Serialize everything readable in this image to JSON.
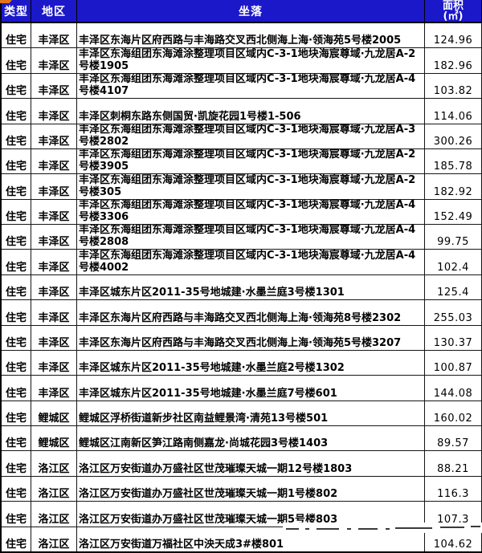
{
  "table": {
    "headers": {
      "type": "类型",
      "district": "地区",
      "location": "坐落",
      "area_line1": "面积",
      "area_line2": "(㎡)"
    },
    "rows": [
      {
        "type": "住宅",
        "district": "丰泽区",
        "location": "丰泽区东海片区府西路与丰海路交叉西北侧海上海·领海苑5号楼2005",
        "area": "124.96"
      },
      {
        "type": "住宅",
        "district": "丰泽区",
        "location": "丰泽区东海组团东海滩涂整理项目区域内C-3-1地块海宸尊域·九龙居A-2号楼1905",
        "area": "182.96"
      },
      {
        "type": "住宅",
        "district": "丰泽区",
        "location": "丰泽区东海组团东海滩涂整理项目区域内C-3-1地块海宸尊域·九龙居A-4号楼4107",
        "area": "103.82"
      },
      {
        "type": "住宅",
        "district": "丰泽区",
        "location": "丰泽区刺桐东路东侧国贸·凯旋花园1号楼1-506",
        "area": "114.06"
      },
      {
        "type": "住宅",
        "district": "丰泽区",
        "location": "丰泽区东海组团东海滩涂整理项目区域内C-3-1地块海宸尊域·九龙居A-3号楼2802",
        "area": "300.26"
      },
      {
        "type": "住宅",
        "district": "丰泽区",
        "location": "丰泽区东海组团东海滩涂整理项目区域内C-3-1地块海宸尊域·九龙居A-2号楼3905",
        "area": "185.78"
      },
      {
        "type": "住宅",
        "district": "丰泽区",
        "location": "丰泽区东海组团东海滩涂整理项目区域内C-3-1地块海宸尊域·九龙居A-2号楼305",
        "area": "182.92"
      },
      {
        "type": "住宅",
        "district": "丰泽区",
        "location": "丰泽区东海组团东海滩涂整理项目区域内C-3-1地块海宸尊域·九龙居A-4号楼3306",
        "area": "152.49"
      },
      {
        "type": "住宅",
        "district": "丰泽区",
        "location": "丰泽区东海组团东海滩涂整理项目区域内C-3-1地块海宸尊域·九龙居A-4号楼2808",
        "area": "99.75"
      },
      {
        "type": "住宅",
        "district": "丰泽区",
        "location": "丰泽区东海组团东海滩涂整理项目区域内C-3-1地块海宸尊域·九龙居A-4号楼4002",
        "area": "102.4"
      },
      {
        "type": "住宅",
        "district": "丰泽区",
        "location": "丰泽区城东片区2011-35号地城建·水墨兰庭3号楼1301",
        "area": "125.4"
      },
      {
        "type": "住宅",
        "district": "丰泽区",
        "location": "丰泽区东海片区府西路与丰海路交叉西北侧海上海·领海苑8号楼2302",
        "area": "255.03"
      },
      {
        "type": "住宅",
        "district": "丰泽区",
        "location": "丰泽区东海片区府西路与丰海路交叉西北侧海上海·领海苑5号楼3207",
        "area": "130.37"
      },
      {
        "type": "住宅",
        "district": "丰泽区",
        "location": "丰泽区城东片区2011-35号地城建·水墨兰庭2号楼1302",
        "area": "100.87"
      },
      {
        "type": "住宅",
        "district": "丰泽区",
        "location": "丰泽区城东片区2011-35号地城建·水墨兰庭7号楼601",
        "area": "144.08"
      },
      {
        "type": "住宅",
        "district": "鲤城区",
        "location": "鲤城区浮桥街道新步社区南益鲤景湾·清苑13号楼501",
        "area": "160.02"
      },
      {
        "type": "住宅",
        "district": "鲤城区",
        "location": "鲤城区江南新区笋江路南侧嘉龙·尚城花园3号楼1403",
        "area": "89.57"
      },
      {
        "type": "住宅",
        "district": "洛江区",
        "location": "洛江区万安街道办万盛社区世茂璀璨天城一期12号楼1803",
        "area": "88.21"
      },
      {
        "type": "住宅",
        "district": "洛江区",
        "location": "洛江区万安街道办万盛社区世茂璀璨天城一期1号楼802",
        "area": "116.3"
      },
      {
        "type": "住宅",
        "district": "洛江区",
        "location": "洛江区万安街道办万盛社区世茂璀璨天城一期5号楼803",
        "area": "107.3"
      },
      {
        "type": "住宅",
        "district": "洛江区",
        "location": "洛江区万安街道万福社区中泱天成3#楼801",
        "area": "104.62"
      }
    ]
  },
  "colors": {
    "header_bg": "#1b18c9",
    "header_text": "#ffffff",
    "grid": "#161616",
    "corner_mark": "#e0761a"
  }
}
